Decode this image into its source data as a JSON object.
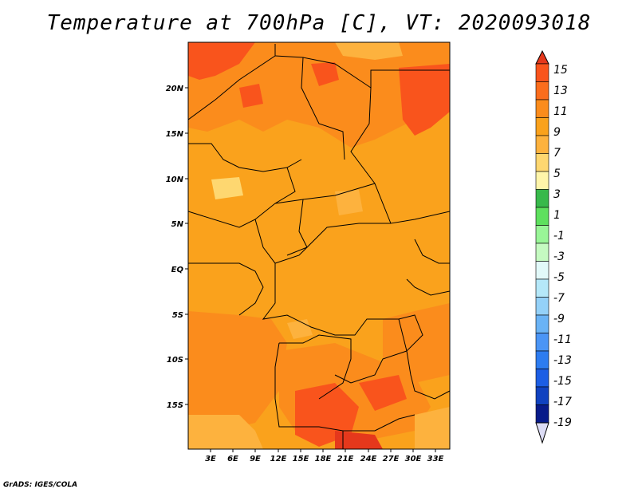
{
  "title": "Temperature at 700hPa [C], VT: 2020093018",
  "credit": "GrADS: IGES/COLA",
  "map": {
    "lat_labels": [
      "20N",
      "15N",
      "10N",
      "5N",
      "EQ",
      "5S",
      "10S",
      "15S"
    ],
    "lon_labels": [
      "3E",
      "6E",
      "9E",
      "12E",
      "15E",
      "18E",
      "21E",
      "24E",
      "27E",
      "30E",
      "33E"
    ]
  },
  "colorbar": {
    "labels": [
      "15",
      "13",
      "11",
      "9",
      "7",
      "5",
      "3",
      "1",
      "-1",
      "-3",
      "-5",
      "-7",
      "-9",
      "-11",
      "-13",
      "-15",
      "-17",
      "-19"
    ],
    "colors": [
      "#f9541c",
      "#fb6d1c",
      "#fb8c1c",
      "#faa21c",
      "#fdb23e",
      "#fed770",
      "#fff5aa",
      "#38b94b",
      "#5ee05e",
      "#99f597",
      "#c5fac1",
      "#e2f9f9",
      "#b5e8f9",
      "#94d1f8",
      "#6ab3f5",
      "#4b95f5",
      "#2d7cf0",
      "#1c5ee4",
      "#1042c0",
      "#081b8a"
    ],
    "top_arrow_color": "#e5381c",
    "bottom_arrow_color": "#dcdcf5"
  }
}
